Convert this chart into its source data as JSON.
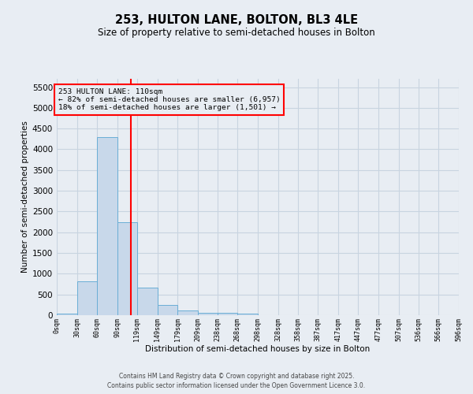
{
  "title": "253, HULTON LANE, BOLTON, BL3 4LE",
  "subtitle": "Size of property relative to semi-detached houses in Bolton",
  "xlabel": "Distribution of semi-detached houses by size in Bolton",
  "ylabel": "Number of semi-detached properties",
  "bar_color": "#c8d8ea",
  "bar_edge_color": "#6aaed6",
  "grid_color": "#c8d4e0",
  "annotation_line_color": "red",
  "property_size": 110,
  "annotation_text_line1": "253 HULTON LANE: 110sqm",
  "annotation_text_line2": "← 82% of semi-detached houses are smaller (6,957)",
  "annotation_text_line3": "18% of semi-detached houses are larger (1,501) →",
  "footer_line1": "Contains HM Land Registry data © Crown copyright and database right 2025.",
  "footer_line2": "Contains public sector information licensed under the Open Government Licence 3.0.",
  "bin_edges": [
    0,
    30,
    60,
    90,
    119,
    149,
    179,
    209,
    238,
    268,
    298,
    328,
    358,
    387,
    417,
    447,
    477,
    507,
    536,
    566,
    596
  ],
  "bin_counts": [
    40,
    820,
    4300,
    2250,
    670,
    240,
    120,
    60,
    50,
    40,
    0,
    0,
    0,
    0,
    0,
    0,
    0,
    0,
    0,
    0
  ],
  "xlim": [
    0,
    596
  ],
  "ylim": [
    0,
    5700
  ],
  "yticks": [
    0,
    500,
    1000,
    1500,
    2000,
    2500,
    3000,
    3500,
    4000,
    4500,
    5000,
    5500
  ],
  "xtick_labels": [
    "0sqm",
    "30sqm",
    "60sqm",
    "90sqm",
    "119sqm",
    "149sqm",
    "179sqm",
    "209sqm",
    "238sqm",
    "268sqm",
    "298sqm",
    "328sqm",
    "358sqm",
    "387sqm",
    "417sqm",
    "447sqm",
    "477sqm",
    "507sqm",
    "536sqm",
    "566sqm",
    "596sqm"
  ],
  "background_color": "#e8edf3"
}
